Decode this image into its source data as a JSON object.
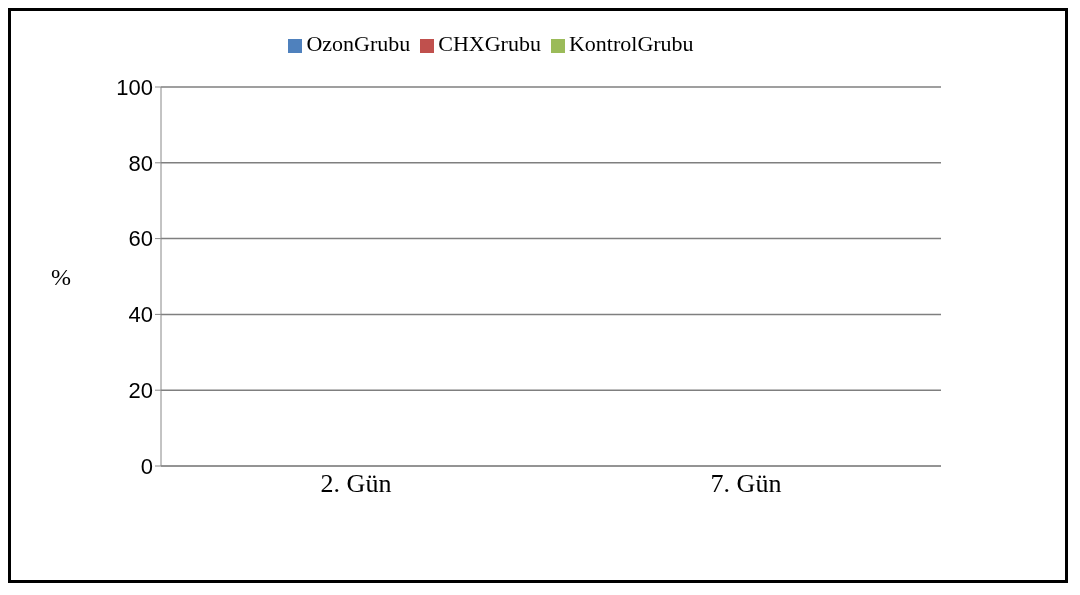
{
  "chart_data": {
    "type": "bar",
    "ylabel": "%",
    "categories": [
      "2. Gün",
      "7. Gün"
    ],
    "series": [
      {
        "name": "OzonGrubu",
        "color": "#4f81bd",
        "values": [
          0,
          0
        ]
      },
      {
        "name": "CHXGrubu",
        "color": "#c0504d",
        "values": [
          0,
          0
        ]
      },
      {
        "name": "KontrolGrubu",
        "color": "#9bbb59",
        "values": [
          0,
          0
        ]
      }
    ],
    "ylim": [
      0,
      100
    ],
    "yticks": [
      0,
      20,
      40,
      60,
      80,
      100
    ],
    "grid": "y",
    "legend": "top"
  }
}
